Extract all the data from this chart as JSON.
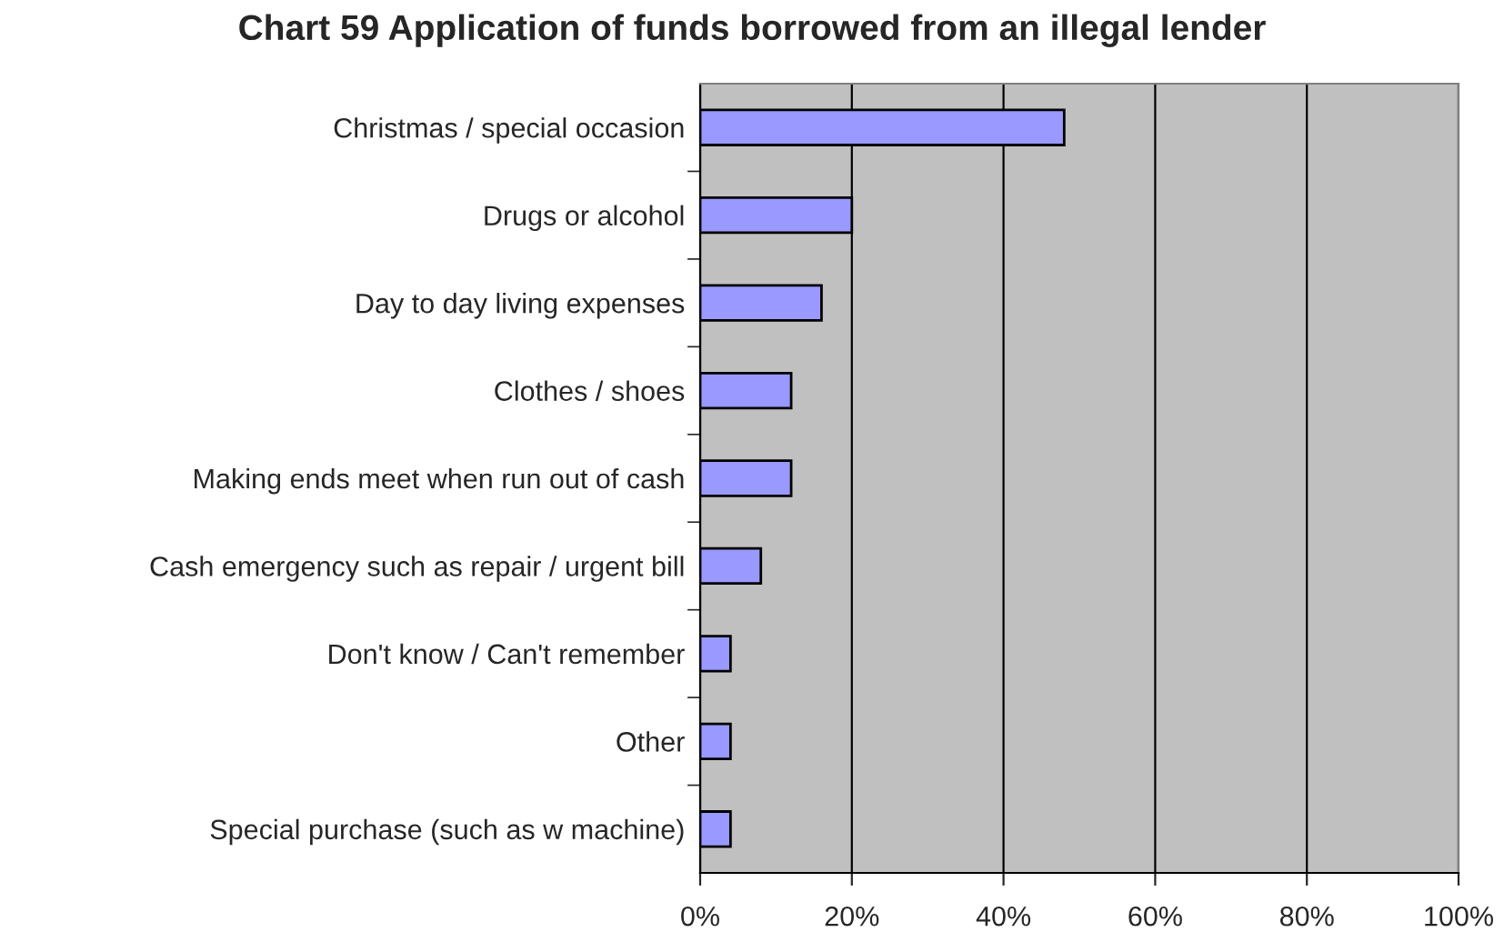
{
  "chart_data": {
    "type": "bar",
    "orientation": "horizontal",
    "title": "Chart 59 Application of funds borrowed from an illegal lender",
    "categories": [
      "Christmas / special occasion",
      "Drugs or alcohol",
      "Day to day living expenses",
      "Clothes / shoes",
      "Making ends meet when run out of cash",
      "Cash emergency such as repair / urgent bill",
      "Don't know / Can't remember",
      "Other",
      "Special purchase (such as w machine)"
    ],
    "values": [
      48,
      20,
      16,
      12,
      12,
      8,
      4,
      4,
      4
    ],
    "color": "#9999ff",
    "xlim": [
      0,
      100
    ],
    "xticks": [
      {
        "value": 0,
        "label": "0%"
      },
      {
        "value": 20,
        "label": "20%"
      },
      {
        "value": 40,
        "label": "40%"
      },
      {
        "value": 60,
        "label": "60%"
      },
      {
        "value": 80,
        "label": "80%"
      },
      {
        "value": 100,
        "label": "100%"
      }
    ],
    "grid": "x"
  }
}
